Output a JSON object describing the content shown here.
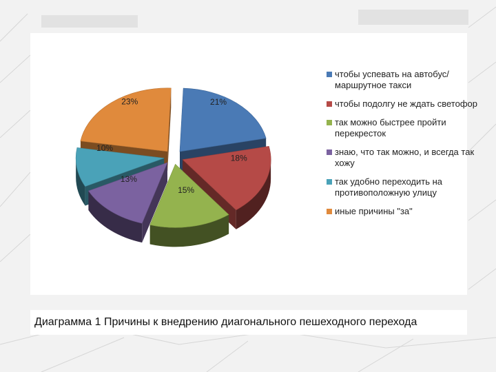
{
  "chart_data": {
    "type": "pie",
    "title": "",
    "style": "3d-exploded",
    "legend_position": "right",
    "slices": [
      {
        "label": "чтобы успевать на автобус/маршрутное такси",
        "value": 21,
        "display": "21%",
        "color": "#4a7ab5"
      },
      {
        "label": "чтобы подолгу не ждать светофор",
        "value": 18,
        "display": "18%",
        "color": "#b54a47"
      },
      {
        "label": "так можно быстрее пройти перекресток",
        "value": 15,
        "display": "15%",
        "color": "#94b34e"
      },
      {
        "label": "знаю, что так можно, и всегда так хожу",
        "value": 13,
        "display": "13%",
        "color": "#7b62a0"
      },
      {
        "label": "так удобно переходить на противоположную улицу",
        "value": 10,
        "display": "10%",
        "color": "#4aa2b8"
      },
      {
        "label": "иные причины \"за\"",
        "value": 23,
        "display": "23%",
        "color": "#e08a3c"
      }
    ]
  },
  "caption": "Диаграмма 1 Причины к внедрению диагонального пешеходного перехода"
}
